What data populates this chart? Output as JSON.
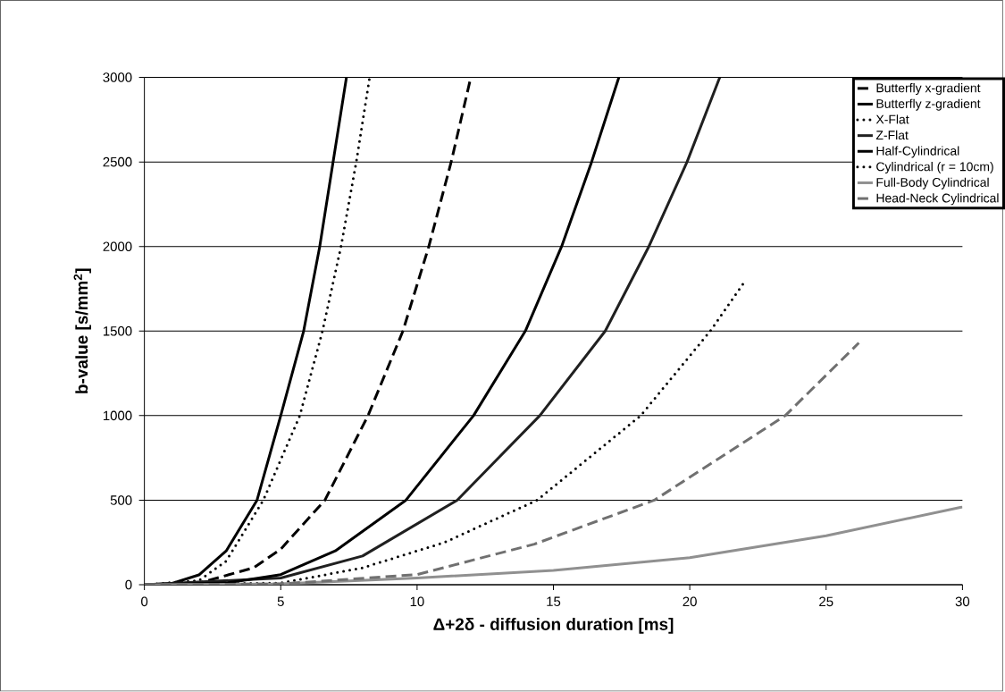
{
  "chart_data": {
    "type": "line",
    "xlabel": "Δ+2δ - diffusion duration [ms]",
    "ylabel": "b-value [s/mm$^{2}$]",
    "xlim": [
      0,
      30
    ],
    "ylim": [
      0,
      3000
    ],
    "xticks": [
      0,
      5,
      10,
      15,
      20,
      25,
      30
    ],
    "yticks": [
      0,
      500,
      1000,
      1500,
      2000,
      2500,
      3000
    ],
    "grid": "y",
    "legend": "top right",
    "marker": "none",
    "series": [
      {
        "name": "Butterfly x-gradient",
        "color": "#000000",
        "line_style": "dashed",
        "x": [
          0,
          2,
          4,
          5,
          6.62,
          8.2,
          9.48,
          10.43,
          11.25,
          11.97
        ],
        "values": [
          0,
          10,
          100,
          210,
          500,
          1000,
          1500,
          2000,
          2500,
          3000
        ]
      },
      {
        "name": "Butterfly z-gradient",
        "color": "#000000",
        "line_style": "solid",
        "x": [
          0,
          1,
          2,
          3,
          4.13,
          5.0,
          5.84,
          6.43,
          6.92,
          7.41
        ],
        "values": [
          0,
          7,
          58,
          200,
          500,
          1000,
          1500,
          2000,
          2500,
          3000
        ]
      },
      {
        "name": "X-Flat",
        "color": "#000000",
        "line_style": "dotted",
        "x": [
          0,
          2,
          3,
          4.36,
          5.7,
          6.53,
          7.21,
          7.77,
          8.26
        ],
        "values": [
          0,
          25,
          140,
          500,
          1000,
          1500,
          2000,
          2500,
          3000
        ]
      },
      {
        "name": "Z-Flat",
        "color": "#202020",
        "line_style": "solid",
        "x": [
          0,
          5,
          8,
          11.47,
          14.5,
          16.9,
          18.5,
          19.9,
          21.1
        ],
        "values": [
          0,
          40,
          170,
          500,
          1000,
          1500,
          2000,
          2500,
          3000
        ]
      },
      {
        "name": "Half-Cylindrical",
        "color": "#000000",
        "line_style": "solid",
        "x": [
          0,
          3,
          5,
          7,
          9.59,
          12.07,
          13.97,
          15.3,
          16.4,
          17.4
        ],
        "values": [
          0,
          10,
          60,
          200,
          500,
          1000,
          1500,
          2000,
          2500,
          3000
        ]
      },
      {
        "name": "Cylindrical (r = 10cm)",
        "color": "#000000",
        "line_style": "dotted",
        "x": [
          0,
          5,
          8,
          11,
          14.4,
          18.2,
          20.75,
          22.0
        ],
        "values": [
          0,
          10,
          100,
          250,
          500,
          1000,
          1500,
          1790
        ]
      },
      {
        "name": "Full-Body Cylindrical",
        "color": "#909090",
        "line_style": "solid",
        "x": [
          0,
          5,
          10,
          15,
          20,
          25,
          30
        ],
        "values": [
          0,
          5,
          40,
          85,
          160,
          290,
          460
        ]
      },
      {
        "name": "Head-Neck Cylindrical",
        "color": "#707070",
        "line_style": "dashed",
        "x": [
          0,
          5,
          10,
          14.3,
          18.7,
          23.5,
          26.2
        ],
        "values": [
          0,
          5,
          60,
          240,
          500,
          1000,
          1430
        ]
      }
    ]
  }
}
